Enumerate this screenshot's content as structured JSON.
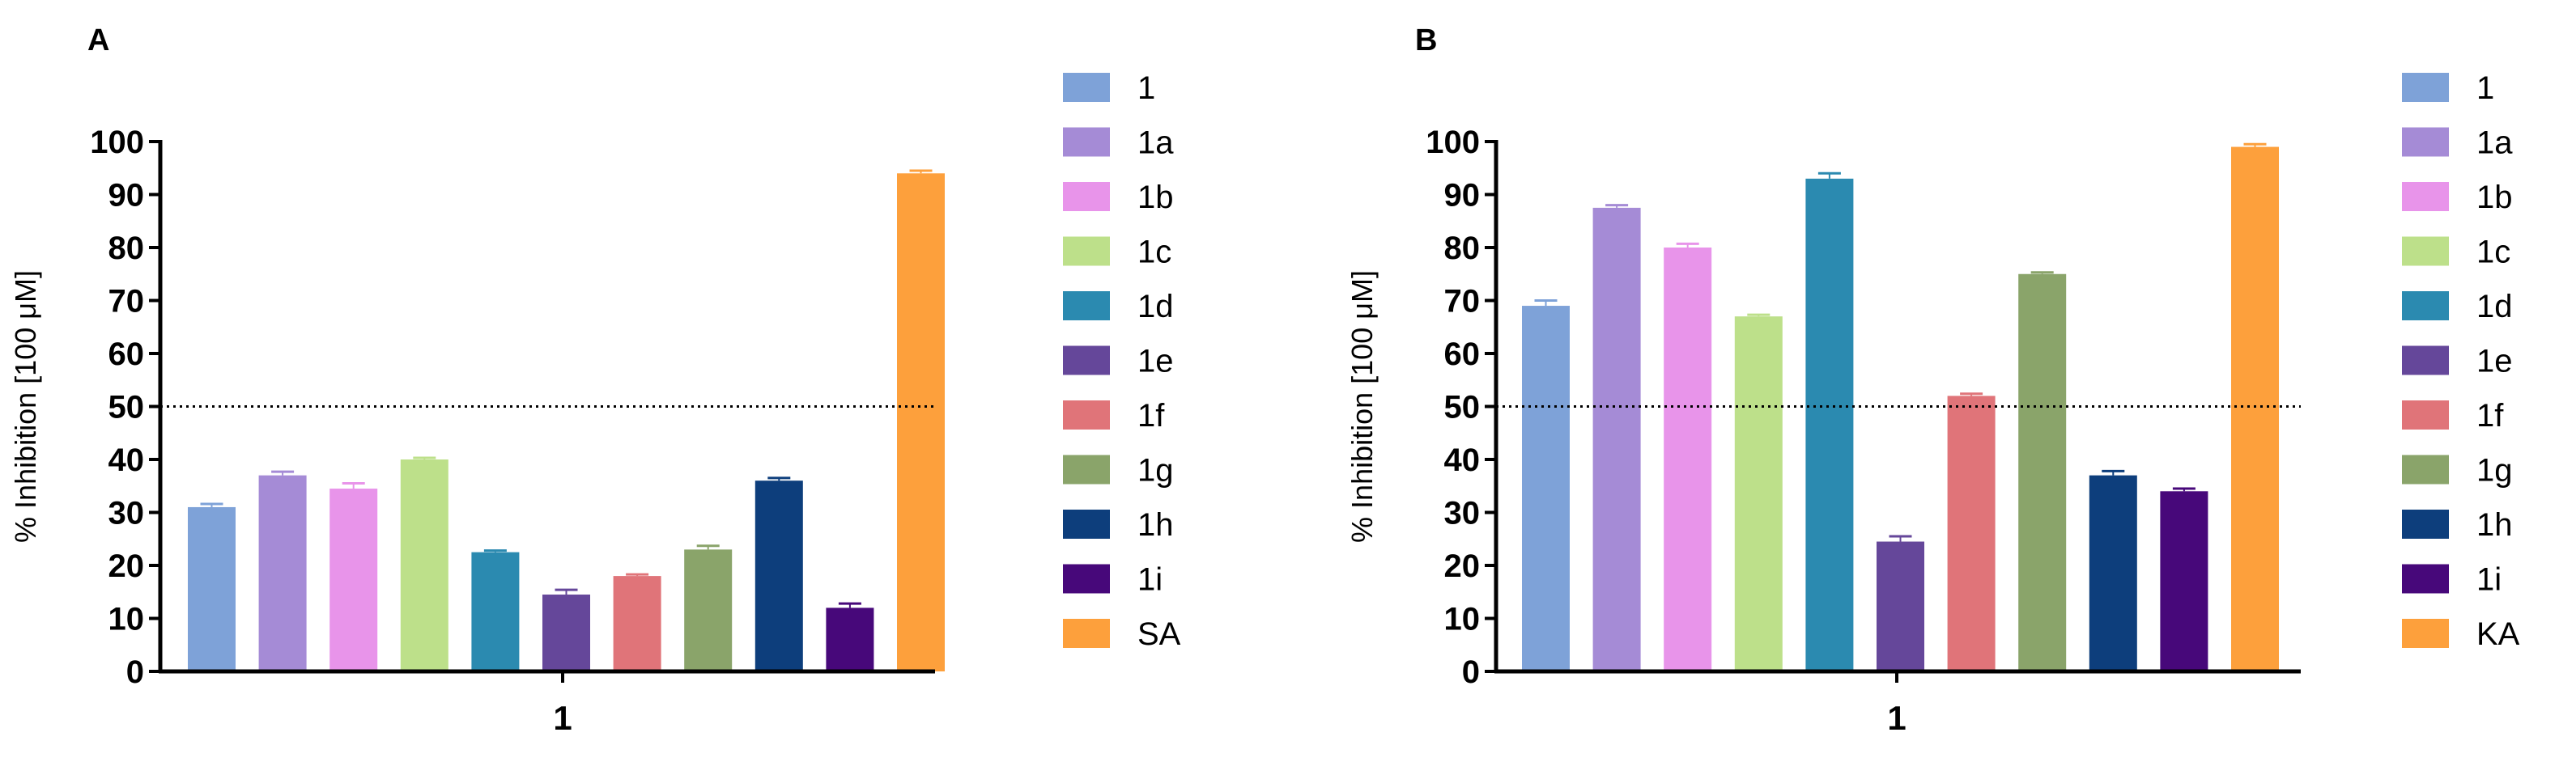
{
  "chart_data": [
    {
      "panel_label": "A",
      "type": "bar",
      "categories": [
        "1"
      ],
      "xlabel": "1",
      "ylabel": "% Inhibition [100 μM]",
      "ylim": [
        0,
        100
      ],
      "yticks": [
        "0",
        "10",
        "20",
        "30",
        "40",
        "50",
        "60",
        "70",
        "80",
        "90",
        "100"
      ],
      "reference_line": 50,
      "series": [
        {
          "name": "1",
          "value": 31,
          "error": 0.6,
          "color": "#7ea2d8"
        },
        {
          "name": "1a",
          "value": 37,
          "error": 0.7,
          "color": "#a58bd6"
        },
        {
          "name": "1b",
          "value": 34.5,
          "error": 1.0,
          "color": "#e894ea"
        },
        {
          "name": "1c",
          "value": 40,
          "error": 0.3,
          "color": "#bde08a"
        },
        {
          "name": "1d",
          "value": 22.5,
          "error": 0.3,
          "color": "#2b8ab0"
        },
        {
          "name": "1e",
          "value": 14.5,
          "error": 0.9,
          "color": "#65479a"
        },
        {
          "name": "1f",
          "value": 18,
          "error": 0.3,
          "color": "#e07479"
        },
        {
          "name": "1g",
          "value": 23,
          "error": 0.7,
          "color": "#8aa46a"
        },
        {
          "name": "1h",
          "value": 36,
          "error": 0.5,
          "color": "#0d3e7c"
        },
        {
          "name": "1i",
          "value": 12,
          "error": 0.8,
          "color": "#47087a"
        },
        {
          "name": "SA",
          "value": 94,
          "error": 0.5,
          "color": "#fda03c"
        }
      ]
    },
    {
      "panel_label": "B",
      "type": "bar",
      "categories": [
        "1"
      ],
      "xlabel": "1",
      "ylabel": "% Inhibition [100 μM]",
      "ylim": [
        0,
        100
      ],
      "yticks": [
        "0",
        "10",
        "20",
        "30",
        "40",
        "50",
        "60",
        "70",
        "80",
        "90",
        "100"
      ],
      "reference_line": 50,
      "series": [
        {
          "name": "1",
          "value": 69,
          "error": 1.0,
          "color": "#7ea2d8"
        },
        {
          "name": "1a",
          "value": 87.5,
          "error": 0.5,
          "color": "#a58bd6"
        },
        {
          "name": "1b",
          "value": 80,
          "error": 0.7,
          "color": "#e894ea"
        },
        {
          "name": "1c",
          "value": 67,
          "error": 0.3,
          "color": "#bde08a"
        },
        {
          "name": "1d",
          "value": 93,
          "error": 1.0,
          "color": "#2b8ab0"
        },
        {
          "name": "1e",
          "value": 24.5,
          "error": 1.0,
          "color": "#65479a"
        },
        {
          "name": "1f",
          "value": 52,
          "error": 0.4,
          "color": "#e07479"
        },
        {
          "name": "1g",
          "value": 75,
          "error": 0.3,
          "color": "#8aa46a"
        },
        {
          "name": "1h",
          "value": 37,
          "error": 0.8,
          "color": "#0d3e7c"
        },
        {
          "name": "1i",
          "value": 34,
          "error": 0.5,
          "color": "#47087a"
        },
        {
          "name": "KA",
          "value": 99,
          "error": 0.5,
          "color": "#fda03c"
        }
      ]
    }
  ]
}
